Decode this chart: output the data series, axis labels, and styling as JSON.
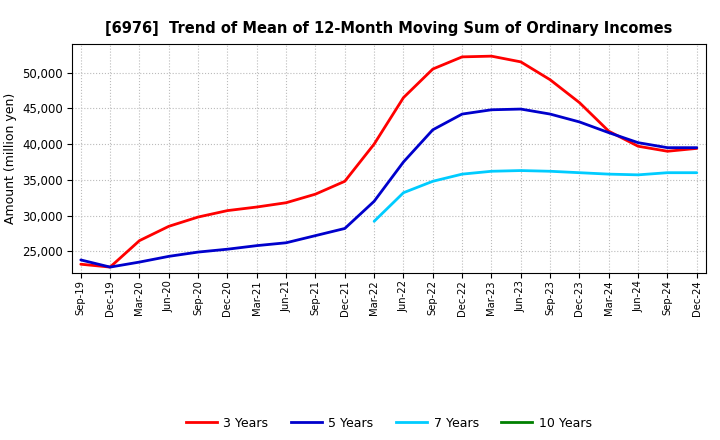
{
  "title": "[6976]  Trend of Mean of 12-Month Moving Sum of Ordinary Incomes",
  "ylabel": "Amount (million yen)",
  "background_color": "#ffffff",
  "grid_color": "#aaaaaa",
  "x_labels": [
    "Sep-19",
    "Dec-19",
    "Mar-20",
    "Jun-20",
    "Sep-20",
    "Dec-20",
    "Mar-21",
    "Jun-21",
    "Sep-21",
    "Dec-21",
    "Mar-22",
    "Jun-22",
    "Sep-22",
    "Dec-22",
    "Mar-23",
    "Jun-23",
    "Sep-23",
    "Dec-23",
    "Mar-24",
    "Jun-24",
    "Sep-24",
    "Dec-24"
  ],
  "ylim": [
    22000,
    54000
  ],
  "yticks": [
    25000,
    30000,
    35000,
    40000,
    45000,
    50000
  ],
  "series": {
    "3 Years": {
      "color": "#ff0000",
      "data_x": [
        0,
        1,
        2,
        3,
        4,
        5,
        6,
        7,
        8,
        9,
        10,
        11,
        12,
        13,
        14,
        15,
        16,
        17,
        18,
        19,
        20,
        21
      ],
      "data_y": [
        23200,
        22800,
        26500,
        28500,
        29800,
        30700,
        31200,
        31800,
        33000,
        34800,
        40000,
        46500,
        50500,
        52200,
        52300,
        51500,
        49000,
        45800,
        41800,
        39700,
        39000,
        39400
      ]
    },
    "5 Years": {
      "color": "#0000cc",
      "data_x": [
        0,
        1,
        2,
        3,
        4,
        5,
        6,
        7,
        8,
        9,
        10,
        11,
        12,
        13,
        14,
        15,
        16,
        17,
        18,
        19,
        20,
        21
      ],
      "data_y": [
        23800,
        22800,
        23500,
        24300,
        24900,
        25300,
        25800,
        26200,
        27200,
        28200,
        32000,
        37500,
        42000,
        44200,
        44800,
        44900,
        44200,
        43100,
        41600,
        40200,
        39500,
        39500
      ]
    },
    "7 Years": {
      "color": "#00ccff",
      "data_x": [
        10,
        11,
        12,
        13,
        14,
        15,
        16,
        17,
        18,
        19,
        20,
        21
      ],
      "data_y": [
        29200,
        33200,
        34800,
        35800,
        36200,
        36300,
        36200,
        36000,
        35800,
        35700,
        36000,
        36000
      ]
    },
    "10 Years": {
      "color": "#008000",
      "data_x": [],
      "data_y": []
    }
  },
  "legend_labels": [
    "3 Years",
    "5 Years",
    "7 Years",
    "10 Years"
  ],
  "legend_colors": [
    "#ff0000",
    "#0000cc",
    "#00ccff",
    "#008000"
  ]
}
